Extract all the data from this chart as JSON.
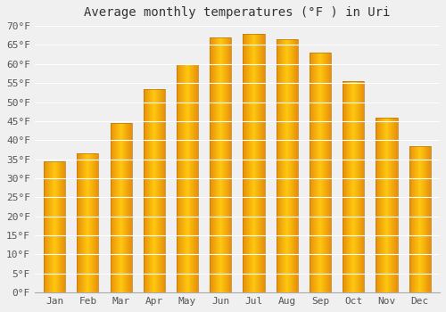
{
  "title": "Average monthly temperatures (°F ) in Uri",
  "months": [
    "Jan",
    "Feb",
    "Mar",
    "Apr",
    "May",
    "Jun",
    "Jul",
    "Aug",
    "Sep",
    "Oct",
    "Nov",
    "Dec"
  ],
  "values": [
    34.5,
    36.5,
    44.5,
    53.5,
    60.0,
    67.0,
    68.0,
    66.5,
    63.0,
    55.5,
    46.0,
    38.5
  ],
  "bar_color": "#FFA500",
  "bar_color_light": "#FFD050",
  "bar_edge_color": "#CC8800",
  "ylim": [
    0,
    70
  ],
  "yticks": [
    0,
    5,
    10,
    15,
    20,
    25,
    30,
    35,
    40,
    45,
    50,
    55,
    60,
    65,
    70
  ],
  "background_color": "#F0F0F0",
  "grid_color": "#FFFFFF",
  "title_fontsize": 10,
  "tick_fontsize": 8
}
